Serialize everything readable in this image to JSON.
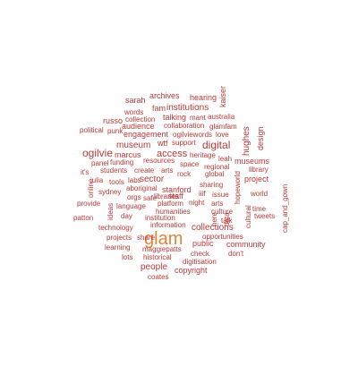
{
  "cloud": {
    "words": [
      "sarah",
      "archives",
      "hearing",
      "kaiser",
      "fam",
      "institutions",
      "words",
      "australia",
      "russo",
      "collection",
      "talking",
      "mant",
      "political",
      "punk",
      "audience",
      "collaboration",
      "glamfam",
      "hughes",
      "engagement",
      "ogilviewords",
      "love",
      "design",
      "wtf",
      "support",
      "digital",
      "museum",
      "ogilvie",
      "marcus",
      "access",
      "heritage",
      "leah",
      "museums",
      "panel",
      "funding",
      "resources",
      "space",
      "regional",
      "library",
      "it's",
      "students",
      "create",
      "arts",
      "global",
      "project",
      "julia",
      "tools",
      "labs",
      "sector",
      "rock",
      "online",
      "aboriginal",
      "stanford",
      "sharing",
      "hopeworld",
      "cultural",
      "sydney",
      "orgs",
      "safe",
      "libraries",
      "staff",
      "iiif",
      "issue",
      "world",
      "language",
      "platform",
      "night",
      "arts",
      "cap_and_gown",
      "provide",
      "ideas",
      "humanities",
      "data",
      "culture",
      "time",
      "patton",
      "day",
      "institution",
      "here",
      "talk",
      "tweets",
      "technology",
      "information",
      "opportunities",
      "glam",
      "projects",
      "share",
      "public",
      "community",
      "learning",
      "maggiepatts",
      "check",
      "don't",
      "lots",
      "historical",
      "digitisation",
      "people",
      "copyright",
      "coates",
      "collections"
    ],
    "highlight_color": "#e0863a",
    "word_color": "#b73a3a"
  }
}
